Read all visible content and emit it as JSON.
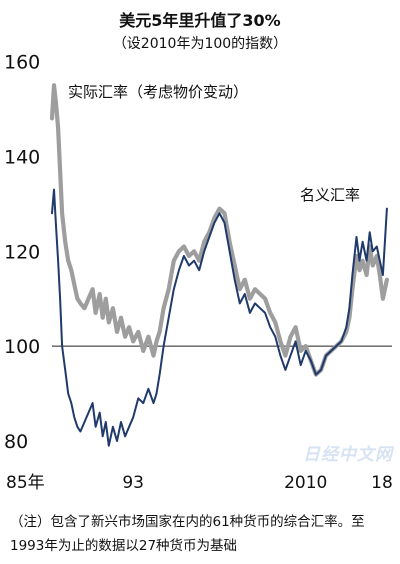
{
  "chart_data": {
    "type": "line",
    "title": "美元5年里升值了30%",
    "subtitle": "（设2010年为100的指数）",
    "xlabel": "",
    "ylabel": "",
    "ylim": [
      76,
      162
    ],
    "xlim": [
      1985.0,
      2018.5
    ],
    "yticks": [
      "160",
      "140",
      "120",
      "100",
      "80"
    ],
    "ytick_values": [
      160,
      140,
      120,
      100,
      80
    ],
    "xticks": [
      "85年",
      "93",
      "2010",
      "18"
    ],
    "xtick_values": [
      1985,
      1993,
      2010,
      2018
    ],
    "reference_line": 100,
    "annotations": [
      "实际汇率（考虑物价变动）",
      "名义汇率"
    ],
    "series": [
      {
        "name": "实际汇率（考虑物价变动）",
        "color": "#9e9e9e",
        "x": [
          1985.0,
          1985.2,
          1985.4,
          1985.6,
          1985.8,
          1986.0,
          1986.3,
          1986.6,
          1986.9,
          1987.2,
          1987.5,
          1987.8,
          1988.2,
          1988.6,
          1989.0,
          1989.3,
          1989.7,
          1990.0,
          1990.3,
          1990.6,
          1991.0,
          1991.4,
          1991.8,
          1992.2,
          1992.6,
          1993.0,
          1993.5,
          1994.0,
          1994.5,
          1995.0,
          1995.3,
          1995.6,
          1996.0,
          1996.5,
          1997.0,
          1997.5,
          1998.0,
          1998.5,
          1999.0,
          1999.5,
          2000.0,
          2000.5,
          2001.0,
          2001.5,
          2002.0,
          2002.5,
          2003.0,
          2003.5,
          2004.0,
          2004.5,
          2005.0,
          2005.5,
          2006.0,
          2006.5,
          2007.0,
          2007.5,
          2008.0,
          2008.5,
          2009.0,
          2009.5,
          2010.0,
          2010.5,
          2011.0,
          2011.5,
          2012.0,
          2012.5,
          2013.0,
          2013.5,
          2014.0,
          2014.3,
          2014.6,
          2015.0,
          2015.3,
          2015.6,
          2016.0,
          2016.3,
          2016.6,
          2017.0,
          2017.3,
          2017.6,
          2018.0
        ],
        "values": [
          148,
          155,
          151,
          146,
          137,
          128,
          122,
          118,
          116,
          113,
          110,
          109,
          108,
          110,
          112,
          107,
          111,
          106,
          110,
          105,
          108,
          103,
          106,
          102,
          104,
          101,
          103,
          99,
          102,
          98,
          101,
          103,
          108,
          112,
          118,
          120,
          121,
          119,
          120,
          118,
          122,
          124,
          127,
          129,
          128,
          122,
          117,
          112,
          114,
          110,
          112,
          111,
          110,
          107,
          105,
          101,
          98,
          102,
          104,
          99,
          100,
          97,
          94,
          95,
          98,
          99,
          100,
          101,
          103,
          106,
          112,
          119,
          116,
          118,
          115,
          121,
          117,
          119,
          115,
          110,
          114
        ]
      },
      {
        "name": "名义汇率",
        "color": "#1f3a6b",
        "x": [
          1985.0,
          1985.2,
          1985.4,
          1985.6,
          1985.8,
          1986.0,
          1986.3,
          1986.6,
          1986.9,
          1987.2,
          1987.5,
          1987.8,
          1988.2,
          1988.6,
          1989.0,
          1989.3,
          1989.7,
          1990.0,
          1990.3,
          1990.6,
          1991.0,
          1991.4,
          1991.8,
          1992.2,
          1992.6,
          1993.0,
          1993.5,
          1994.0,
          1994.5,
          1995.0,
          1995.3,
          1995.6,
          1996.0,
          1996.5,
          1997.0,
          1997.5,
          1998.0,
          1998.5,
          1999.0,
          1999.5,
          2000.0,
          2000.5,
          2001.0,
          2001.5,
          2002.0,
          2002.5,
          2003.0,
          2003.5,
          2004.0,
          2004.5,
          2005.0,
          2005.5,
          2006.0,
          2006.5,
          2007.0,
          2007.5,
          2008.0,
          2008.5,
          2009.0,
          2009.5,
          2010.0,
          2010.5,
          2011.0,
          2011.5,
          2012.0,
          2012.5,
          2013.0,
          2013.5,
          2014.0,
          2014.3,
          2014.6,
          2015.0,
          2015.3,
          2015.6,
          2016.0,
          2016.3,
          2016.6,
          2017.0,
          2017.3,
          2017.6,
          2018.0
        ],
        "values": [
          128,
          133,
          125,
          118,
          110,
          100,
          95,
          90,
          88,
          85,
          83,
          82,
          84,
          86,
          88,
          83,
          86,
          81,
          84,
          79,
          83,
          80,
          84,
          81,
          83,
          85,
          89,
          88,
          91,
          88,
          90,
          94,
          100,
          106,
          112,
          116,
          119,
          117,
          118,
          116,
          120,
          123,
          126,
          128,
          126,
          120,
          114,
          109,
          111,
          107,
          109,
          108,
          107,
          104,
          102,
          98,
          95,
          98,
          101,
          96,
          99,
          97,
          94,
          95,
          98,
          99,
          100,
          101,
          104,
          108,
          115,
          123,
          118,
          122,
          118,
          124,
          120,
          121,
          118,
          115,
          129
        ]
      }
    ]
  },
  "watermark": "日经中文网",
  "note": "（注）包含了新兴市场国家在内的61种货币的综合汇率。至1993年为止的数据以27种货币为基础"
}
